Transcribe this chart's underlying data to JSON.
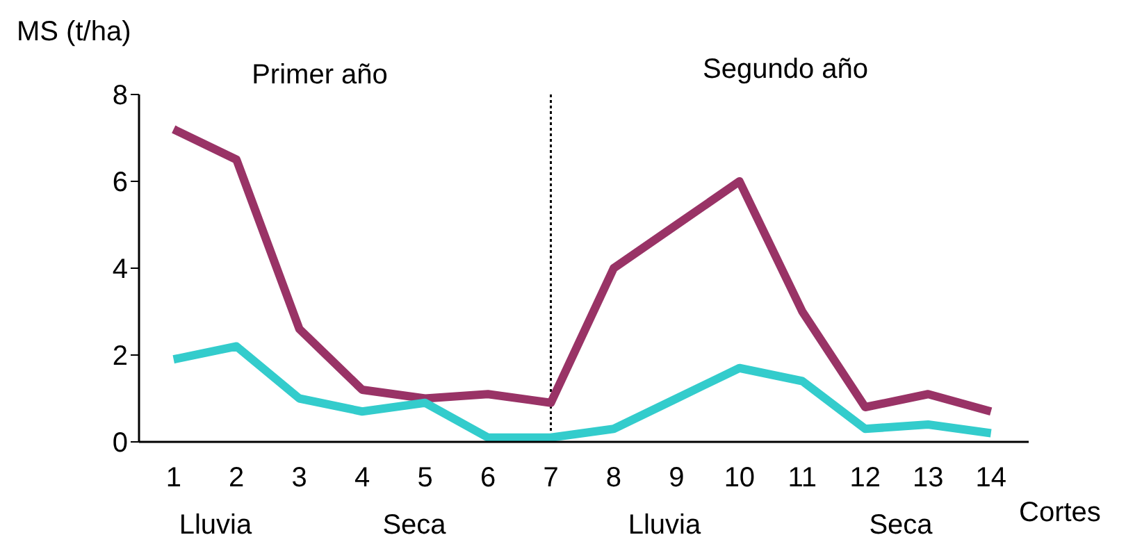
{
  "chart_data": {
    "type": "line",
    "ylabel": "MS (t/ha)",
    "xlabel": "Cortes",
    "x": [
      1,
      2,
      3,
      4,
      5,
      6,
      7,
      8,
      9,
      10,
      11,
      12,
      13,
      14
    ],
    "series": [
      {
        "color": "#993366",
        "values": [
          7.2,
          6.5,
          2.6,
          1.2,
          1.0,
          1.1,
          0.9,
          4.0,
          5.0,
          6.0,
          3.0,
          0.8,
          1.1,
          0.7
        ]
      },
      {
        "color": "#33cccc",
        "values": [
          1.9,
          2.2,
          1.0,
          0.7,
          0.9,
          0.1,
          0.1,
          0.3,
          1.0,
          1.7,
          1.4,
          0.3,
          0.4,
          0.2
        ]
      }
    ],
    "xlim": [
      0.45,
      14.6
    ],
    "xticks": [
      1,
      2,
      3,
      4,
      5,
      6,
      7,
      8,
      9,
      10,
      11,
      12,
      13,
      14
    ],
    "ylim": [
      0,
      8
    ],
    "yticks": [
      0,
      2,
      4,
      6,
      8
    ],
    "grid": false,
    "legend": false,
    "marker": "none",
    "line_style": "solid",
    "ref_lines": [
      {
        "axis": "x",
        "value": 7,
        "color": "#000000",
        "line_style": "dotted"
      }
    ],
    "annotations": [
      "Primer año",
      "Segundo año",
      "Lluvia",
      "Seca",
      "Lluvia",
      "Seca"
    ]
  }
}
